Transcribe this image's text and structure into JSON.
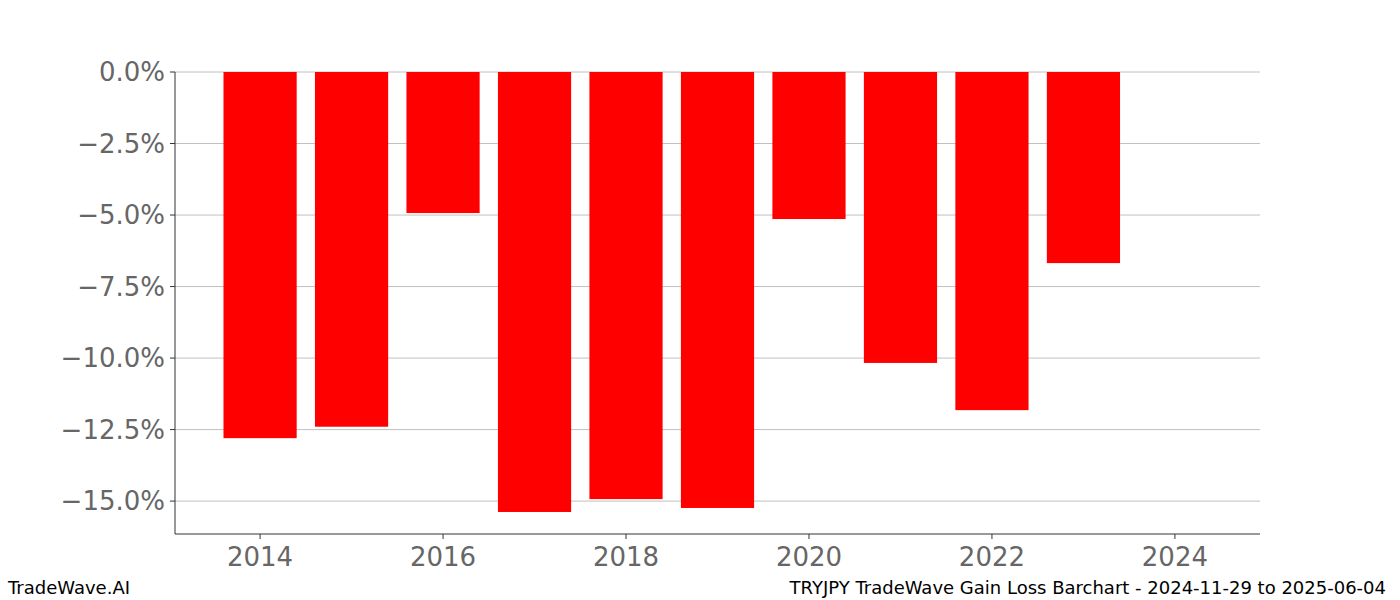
{
  "chart_data": {
    "type": "bar",
    "title": "TRYJPY TradeWave Gain Loss Barchart - 2024-11-29 to 2025-06-04",
    "watermark": "TradeWave.AI",
    "x": [
      2014,
      2015,
      2016,
      2017,
      2018,
      2019,
      2020,
      2021,
      2022,
      2023
    ],
    "values": [
      -12.8,
      -12.4,
      -4.93,
      -15.38,
      -14.93,
      -15.24,
      -5.14,
      -10.17,
      -11.82,
      -6.68
    ],
    "color": "#ff0000",
    "xlim": [
      2013.07,
      2024.93
    ],
    "xticks": [
      2014,
      2016,
      2018,
      2020,
      2022,
      2024
    ],
    "ylim": [
      -16.15,
      0
    ],
    "yticks": [
      {
        "value": 0,
        "label": "0.0%"
      },
      {
        "value": -2.5,
        "label": "−2.5%"
      },
      {
        "value": -5,
        "label": "−5.0%"
      },
      {
        "value": -7.5,
        "label": "−7.5%"
      },
      {
        "value": -10,
        "label": "−10.0%"
      },
      {
        "value": -12.5,
        "label": "−12.5%"
      },
      {
        "value": -15,
        "label": "−15.0%"
      }
    ],
    "grid": true
  }
}
